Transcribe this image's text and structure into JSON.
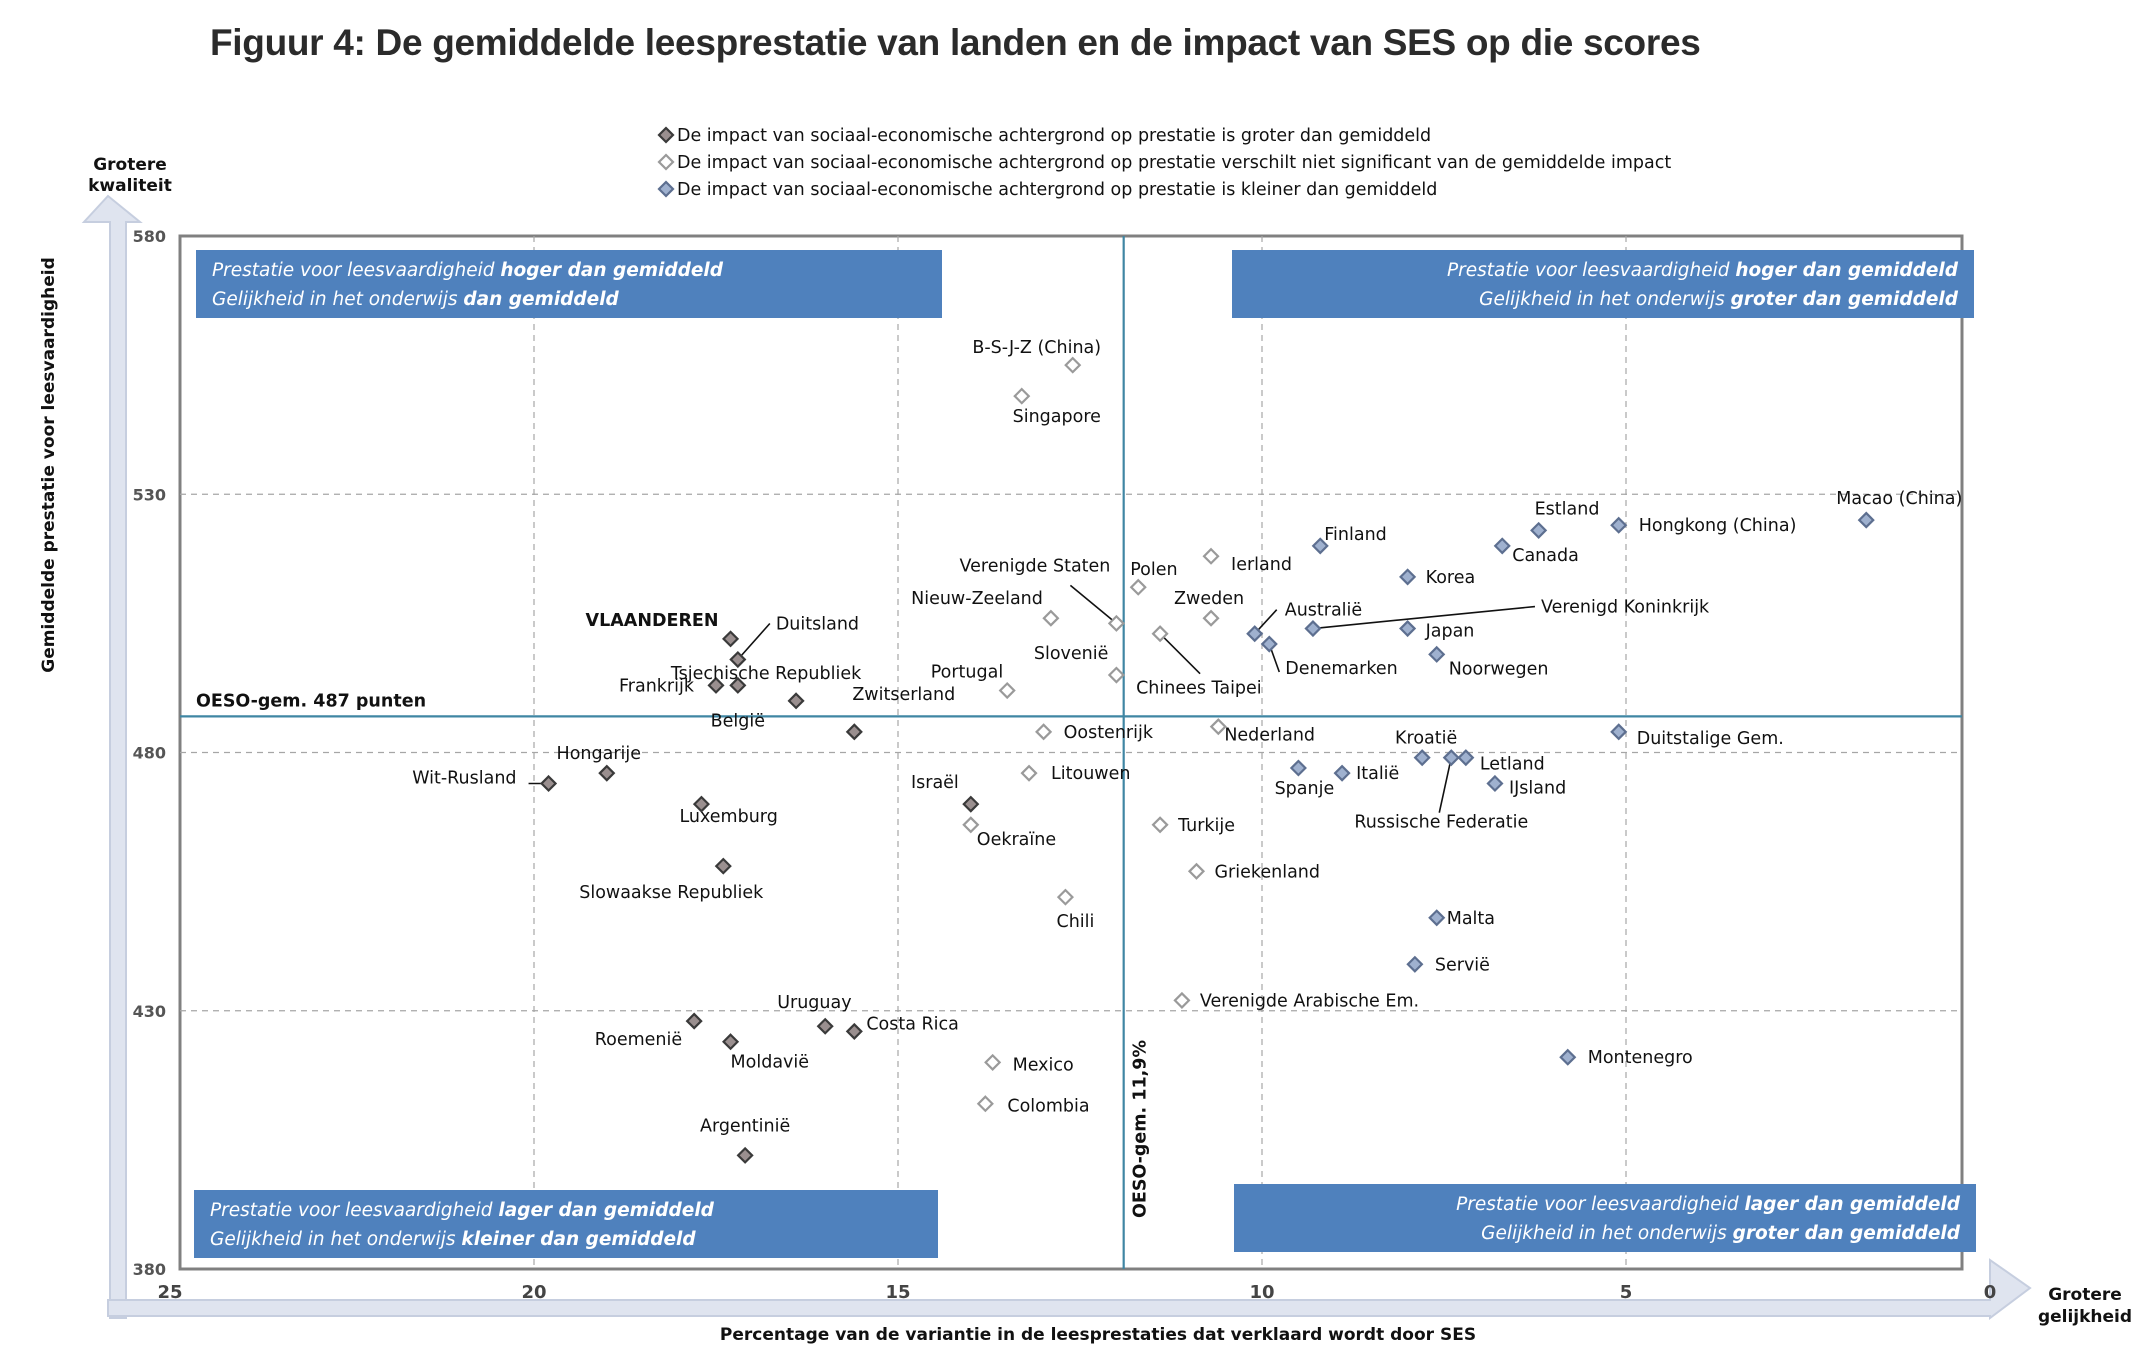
{
  "chart_data": {
    "type": "scatter",
    "title": "Figuur 4: De gemiddelde leesprestatie van landen en de impact van SES op die scores",
    "xlabel": "Percentage van de variantie in de leesprestaties dat verklaard wordt door SES",
    "ylabel": "Gemiddelde prestatie voor leesvaardigheid",
    "xlim": [
      25,
      0
    ],
    "ylim": [
      380,
      580
    ],
    "x_ticks": [
      "25",
      "20",
      "15",
      "10",
      "5",
      "0"
    ],
    "y_ticks": [
      "580",
      "530",
      "480",
      "430",
      "380"
    ],
    "y_axis_corner_label": [
      "Grotere",
      "kwaliteit"
    ],
    "x_axis_corner_label": [
      "Grotere",
      "gelijkheid"
    ],
    "colors": {
      "groter": "#3a3a3a",
      "niet_significant": "#ffffff",
      "kleiner": "#7f95ba",
      "frame": "#7f7f7f",
      "refline": "#3f86a3",
      "quad_box": "#4f81bd"
    },
    "legend": [
      {
        "group": "groter",
        "label": "De impact van sociaal-economische achtergrond op prestatie is groter dan gemiddeld"
      },
      {
        "group": "niet_significant",
        "label": "De impact van sociaal-economische achtergrond op prestatie verschilt niet significant van de gemiddelde impact"
      },
      {
        "group": "kleiner",
        "label": "De impact van sociaal-economische achtergrond op prestatie is kleiner dan gemiddeld"
      }
    ],
    "reference_lines": {
      "horizontal": {
        "value": 487,
        "label": "OESO-gem. 487 punten"
      },
      "vertical": {
        "value": 11.9,
        "label": "OESO-gem. 11,9%"
      }
    },
    "quadrants": [
      {
        "pos": "top-left",
        "line1_pre": "Prestatie voor leesvaardigheid ",
        "line1_bold": "hoger dan gemiddeld",
        "line2_pre": "Gelijkheid in het onderwijs ",
        "line2_bold": "dan gemiddeld"
      },
      {
        "pos": "top-right",
        "line1_pre": "Prestatie voor leesvaardigheid ",
        "line1_bold": "hoger dan gemiddeld",
        "line2_pre": "Gelijkheid in het onderwijs ",
        "line2_bold": "groter dan gemiddeld"
      },
      {
        "pos": "bottom-left",
        "line1_pre": "Prestatie voor leesvaardigheid ",
        "line1_bold": "lager dan gemiddeld",
        "line2_pre": "Gelijkheid in het onderwijs ",
        "line2_bold": "kleiner dan gemiddeld"
      },
      {
        "pos": "bottom-right",
        "line1_pre": "Prestatie voor leesvaardigheid ",
        "line1_bold": "lager dan gemiddeld",
        "line2_pre": "Gelijkheid in het onderwijs ",
        "line2_bold": "groter dan gemiddeld"
      }
    ],
    "points": [
      {
        "name": "B-S-J-Z (China)",
        "x": 12.6,
        "y": 555,
        "group": "niet_significant"
      },
      {
        "name": "Singapore",
        "x": 13.3,
        "y": 549,
        "group": "niet_significant"
      },
      {
        "name": "Macao (China)",
        "x": 1.7,
        "y": 525,
        "group": "kleiner"
      },
      {
        "name": "Hongkong (China)",
        "x": 5.1,
        "y": 524,
        "group": "kleiner"
      },
      {
        "name": "Estland",
        "x": 6.2,
        "y": 523,
        "group": "kleiner"
      },
      {
        "name": "Canada",
        "x": 6.7,
        "y": 520,
        "group": "kleiner"
      },
      {
        "name": "Finland",
        "x": 9.2,
        "y": 520,
        "group": "kleiner"
      },
      {
        "name": "Ierland",
        "x": 10.7,
        "y": 518,
        "group": "niet_significant"
      },
      {
        "name": "Korea",
        "x": 8.0,
        "y": 514,
        "group": "kleiner"
      },
      {
        "name": "Polen",
        "x": 11.7,
        "y": 512,
        "group": "niet_significant"
      },
      {
        "name": "Zweden",
        "x": 10.7,
        "y": 506,
        "group": "niet_significant"
      },
      {
        "name": "Nieuw-Zeeland",
        "x": 12.9,
        "y": 506,
        "group": "niet_significant"
      },
      {
        "name": "Verenigde Staten",
        "x": 12.0,
        "y": 505,
        "group": "niet_significant"
      },
      {
        "name": "Verenigd Koninkrijk",
        "x": 9.3,
        "y": 504,
        "group": "kleiner"
      },
      {
        "name": "Japan",
        "x": 8.0,
        "y": 504,
        "group": "kleiner"
      },
      {
        "name": "Australië",
        "x": 10.1,
        "y": 503,
        "group": "kleiner"
      },
      {
        "name": "Chinees Taipei",
        "x": 11.4,
        "y": 503,
        "group": "niet_significant"
      },
      {
        "name": "Denemarken",
        "x": 9.9,
        "y": 501,
        "group": "kleiner"
      },
      {
        "name": "Noorwegen",
        "x": 7.6,
        "y": 499,
        "group": "kleiner"
      },
      {
        "name": "Duitsland",
        "x": 17.2,
        "y": 498,
        "group": "groter"
      },
      {
        "name": "Slovenië",
        "x": 12.0,
        "y": 495,
        "group": "niet_significant"
      },
      {
        "name": "België",
        "x": 17.2,
        "y": 493,
        "group": "groter"
      },
      {
        "name": "Frankrijk",
        "x": 17.5,
        "y": 493,
        "group": "groter"
      },
      {
        "name": "Portugal",
        "x": 13.5,
        "y": 492,
        "group": "niet_significant"
      },
      {
        "name": "Tsjechische Republiek",
        "x": 16.4,
        "y": 490,
        "group": "groter"
      },
      {
        "name": "Oostenrijk",
        "x": 13.0,
        "y": 484,
        "group": "niet_significant"
      },
      {
        "name": "Nederland",
        "x": 10.6,
        "y": 485,
        "group": "niet_significant"
      },
      {
        "name": "Zwitserland",
        "x": 15.6,
        "y": 484,
        "group": "groter"
      },
      {
        "name": "Duitstalige Gem.",
        "x": 5.1,
        "y": 484,
        "group": "kleiner"
      },
      {
        "name": "Letland",
        "x": 7.2,
        "y": 479,
        "group": "kleiner"
      },
      {
        "name": "Italië",
        "x": 8.9,
        "y": 476,
        "group": "kleiner"
      },
      {
        "name": "Spanje",
        "x": 9.5,
        "y": 477,
        "group": "kleiner"
      },
      {
        "name": "Kroatië",
        "x": 7.8,
        "y": 479,
        "group": "kleiner"
      },
      {
        "name": "Russische Federatie",
        "x": 7.4,
        "y": 479,
        "group": "kleiner"
      },
      {
        "name": "Litouwen",
        "x": 13.2,
        "y": 476,
        "group": "niet_significant"
      },
      {
        "name": "Hongarije",
        "x": 19.0,
        "y": 476,
        "group": "groter"
      },
      {
        "name": "Wit-Rusland",
        "x": 19.8,
        "y": 474,
        "group": "groter"
      },
      {
        "name": "IJsland",
        "x": 6.8,
        "y": 474,
        "group": "kleiner"
      },
      {
        "name": "Israël",
        "x": 14.0,
        "y": 470,
        "group": "groter"
      },
      {
        "name": "Luxemburg",
        "x": 17.7,
        "y": 470,
        "group": "groter"
      },
      {
        "name": "Turkije",
        "x": 11.4,
        "y": 466,
        "group": "niet_significant"
      },
      {
        "name": "Oekraïne",
        "x": 14.0,
        "y": 466,
        "group": "niet_significant"
      },
      {
        "name": "Slowaakse Republiek",
        "x": 17.4,
        "y": 458,
        "group": "groter"
      },
      {
        "name": "Griekenland",
        "x": 10.9,
        "y": 457,
        "group": "niet_significant"
      },
      {
        "name": "Chili",
        "x": 12.7,
        "y": 452,
        "group": "niet_significant"
      },
      {
        "name": "Malta",
        "x": 7.6,
        "y": 448,
        "group": "kleiner"
      },
      {
        "name": "Servië",
        "x": 7.9,
        "y": 439,
        "group": "kleiner"
      },
      {
        "name": "Verenigde Arabische Em.",
        "x": 11.1,
        "y": 432,
        "group": "niet_significant"
      },
      {
        "name": "Uruguay",
        "x": 16.0,
        "y": 427,
        "group": "groter"
      },
      {
        "name": "Costa Rica",
        "x": 15.6,
        "y": 426,
        "group": "groter"
      },
      {
        "name": "Roemenië",
        "x": 17.8,
        "y": 428,
        "group": "groter"
      },
      {
        "name": "Moldavië",
        "x": 17.3,
        "y": 424,
        "group": "groter"
      },
      {
        "name": "Mexico",
        "x": 13.7,
        "y": 420,
        "group": "niet_significant"
      },
      {
        "name": "Montenegro",
        "x": 5.8,
        "y": 421,
        "group": "kleiner"
      },
      {
        "name": "Colombia",
        "x": 13.8,
        "y": 412,
        "group": "niet_significant"
      },
      {
        "name": "Argentinië",
        "x": 17.1,
        "y": 402,
        "group": "groter"
      }
    ],
    "highlight": {
      "name": "VLAANDEREN",
      "x": 17.3,
      "y": 502,
      "group": "groter"
    }
  }
}
